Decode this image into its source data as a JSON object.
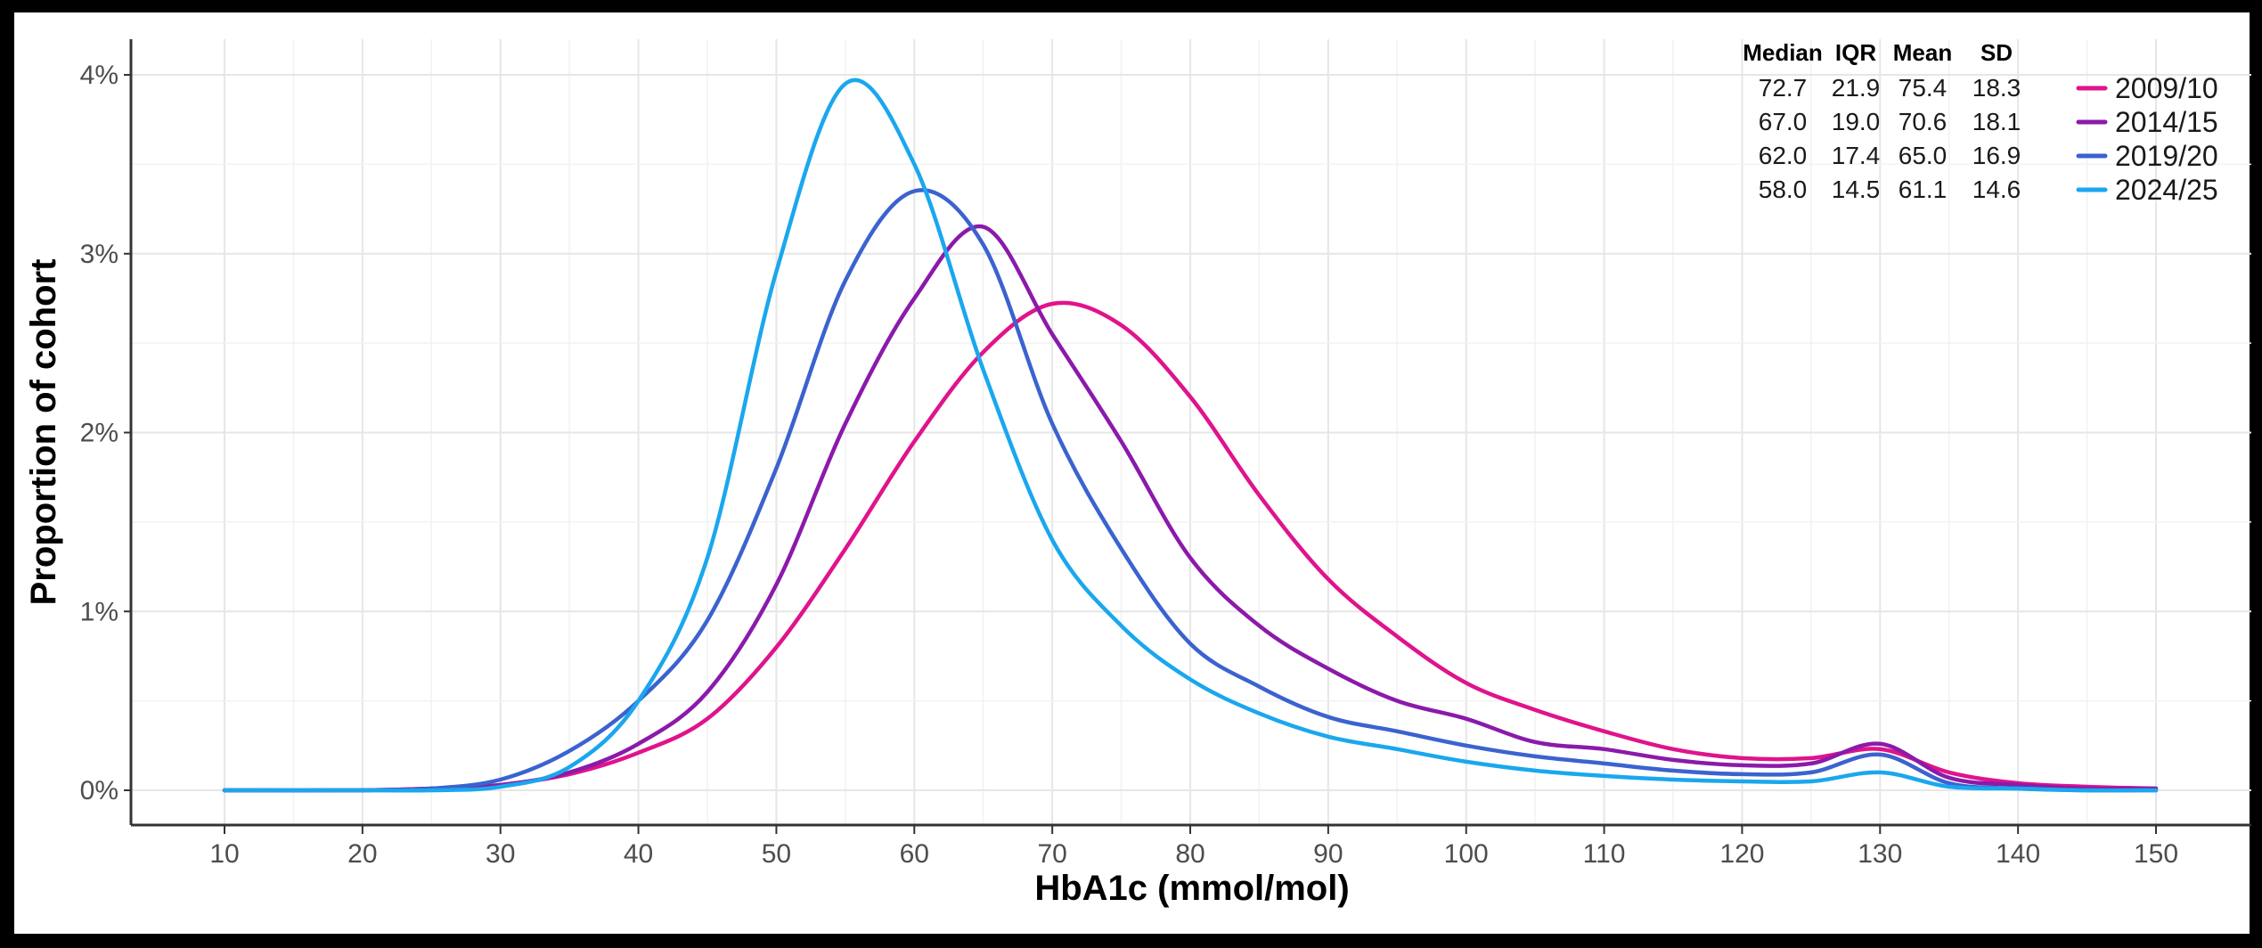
{
  "chart_data": {
    "type": "line",
    "title": "",
    "xlabel": "HbA1c (mmol/mol)",
    "ylabel": "Proportion of cohort",
    "xlim": [
      10,
      150
    ],
    "ylim": [
      0,
      4
    ],
    "x_ticks": [
      10,
      20,
      30,
      40,
      50,
      60,
      70,
      80,
      90,
      100,
      110,
      120,
      130,
      140,
      150
    ],
    "y_ticks": [
      {
        "value": 0,
        "label": "0%"
      },
      {
        "value": 1,
        "label": "1%"
      },
      {
        "value": 2,
        "label": "2%"
      },
      {
        "value": 3,
        "label": "3%"
      },
      {
        "value": 4,
        "label": "4%"
      }
    ],
    "grid": true,
    "legend_position": "top-right",
    "stats_table": {
      "headers": [
        "Median",
        "IQR",
        "Mean",
        "SD"
      ],
      "rows": [
        [
          "72.7",
          "21.9",
          "75.4",
          "18.3"
        ],
        [
          "67.0",
          "19.0",
          "70.6",
          "18.1"
        ],
        [
          "62.0",
          "17.4",
          "65.0",
          "16.9"
        ],
        [
          "58.0",
          "14.5",
          "61.1",
          "14.6"
        ]
      ]
    },
    "series": [
      {
        "name": "2009/10",
        "color": "#e0138c",
        "points": [
          [
            10,
            0
          ],
          [
            20,
            0
          ],
          [
            25,
            0.01
          ],
          [
            30,
            0.03
          ],
          [
            35,
            0.09
          ],
          [
            40,
            0.21
          ],
          [
            45,
            0.4
          ],
          [
            50,
            0.8
          ],
          [
            55,
            1.35
          ],
          [
            60,
            1.95
          ],
          [
            65,
            2.45
          ],
          [
            70,
            2.72
          ],
          [
            75,
            2.6
          ],
          [
            80,
            2.2
          ],
          [
            85,
            1.65
          ],
          [
            90,
            1.18
          ],
          [
            95,
            0.86
          ],
          [
            100,
            0.6
          ],
          [
            105,
            0.45
          ],
          [
            110,
            0.33
          ],
          [
            115,
            0.23
          ],
          [
            120,
            0.18
          ],
          [
            125,
            0.18
          ],
          [
            130,
            0.23
          ],
          [
            135,
            0.1
          ],
          [
            140,
            0.04
          ],
          [
            145,
            0.02
          ],
          [
            150,
            0.01
          ]
        ]
      },
      {
        "name": "2014/15",
        "color": "#8b1aaa",
        "points": [
          [
            10,
            0
          ],
          [
            20,
            0
          ],
          [
            25,
            0.01
          ],
          [
            30,
            0.03
          ],
          [
            35,
            0.1
          ],
          [
            40,
            0.26
          ],
          [
            45,
            0.55
          ],
          [
            50,
            1.15
          ],
          [
            55,
            2.05
          ],
          [
            60,
            2.75
          ],
          [
            65,
            3.15
          ],
          [
            70,
            2.55
          ],
          [
            75,
            1.95
          ],
          [
            80,
            1.3
          ],
          [
            85,
            0.92
          ],
          [
            90,
            0.68
          ],
          [
            95,
            0.5
          ],
          [
            100,
            0.4
          ],
          [
            105,
            0.27
          ],
          [
            110,
            0.23
          ],
          [
            115,
            0.17
          ],
          [
            120,
            0.14
          ],
          [
            125,
            0.15
          ],
          [
            130,
            0.26
          ],
          [
            135,
            0.07
          ],
          [
            140,
            0.03
          ],
          [
            145,
            0.01
          ],
          [
            150,
            0.01
          ]
        ]
      },
      {
        "name": "2019/20",
        "color": "#3b63cf",
        "points": [
          [
            10,
            0
          ],
          [
            20,
            0
          ],
          [
            25,
            0.01
          ],
          [
            30,
            0.06
          ],
          [
            35,
            0.22
          ],
          [
            40,
            0.5
          ],
          [
            45,
            0.95
          ],
          [
            50,
            1.8
          ],
          [
            55,
            2.85
          ],
          [
            60,
            3.35
          ],
          [
            65,
            3.05
          ],
          [
            70,
            2.05
          ],
          [
            75,
            1.35
          ],
          [
            80,
            0.82
          ],
          [
            85,
            0.58
          ],
          [
            90,
            0.41
          ],
          [
            95,
            0.33
          ],
          [
            100,
            0.25
          ],
          [
            105,
            0.19
          ],
          [
            110,
            0.15
          ],
          [
            115,
            0.11
          ],
          [
            120,
            0.09
          ],
          [
            125,
            0.1
          ],
          [
            130,
            0.2
          ],
          [
            135,
            0.04
          ],
          [
            140,
            0.01
          ],
          [
            145,
            0
          ],
          [
            150,
            0
          ]
        ]
      },
      {
        "name": "2024/25",
        "color": "#1aa7ee",
        "points": [
          [
            10,
            0
          ],
          [
            20,
            0
          ],
          [
            25,
            0
          ],
          [
            30,
            0.02
          ],
          [
            35,
            0.13
          ],
          [
            40,
            0.5
          ],
          [
            45,
            1.3
          ],
          [
            50,
            2.9
          ],
          [
            55,
            3.95
          ],
          [
            60,
            3.5
          ],
          [
            65,
            2.35
          ],
          [
            70,
            1.4
          ],
          [
            75,
            0.92
          ],
          [
            80,
            0.62
          ],
          [
            85,
            0.43
          ],
          [
            90,
            0.3
          ],
          [
            95,
            0.23
          ],
          [
            100,
            0.16
          ],
          [
            105,
            0.11
          ],
          [
            110,
            0.08
          ],
          [
            115,
            0.06
          ],
          [
            120,
            0.05
          ],
          [
            125,
            0.05
          ],
          [
            130,
            0.1
          ],
          [
            135,
            0.02
          ],
          [
            140,
            0.01
          ],
          [
            145,
            0
          ],
          [
            150,
            0
          ]
        ]
      }
    ]
  }
}
